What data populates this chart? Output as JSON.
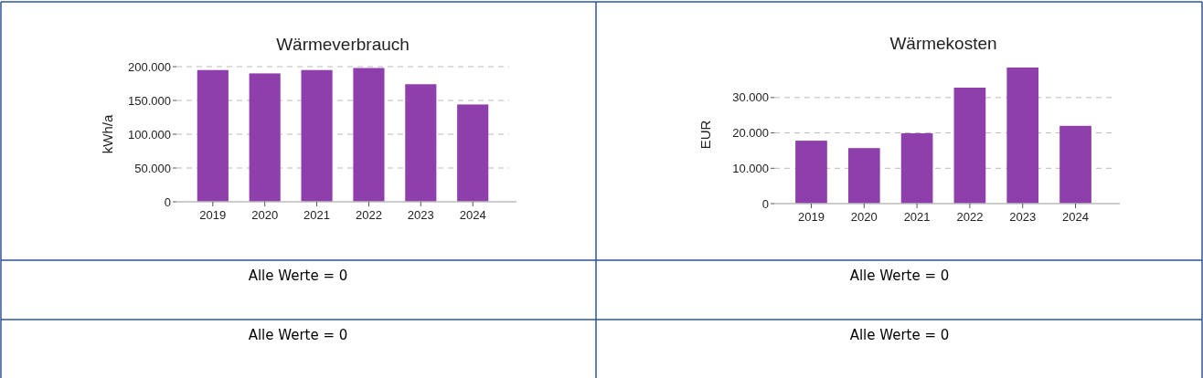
{
  "chart_data": [
    {
      "type": "bar",
      "title": "Wärmeverbrauch",
      "ylabel": "kWh/a",
      "categories": [
        "2019",
        "2020",
        "2021",
        "2022",
        "2023",
        "2024"
      ],
      "values": [
        195000,
        190000,
        195000,
        198000,
        174000,
        144000
      ],
      "color": "#8e3fab",
      "ylim": [
        0,
        200000
      ],
      "yticks": [
        {
          "value": 0,
          "label": "0"
        },
        {
          "value": 50000,
          "label": "50.000"
        },
        {
          "value": 100000,
          "label": "100.000"
        },
        {
          "value": 150000,
          "label": "150.000"
        },
        {
          "value": 200000,
          "label": "200.000"
        }
      ],
      "grid": "y"
    },
    {
      "type": "bar",
      "title": "Wärmekosten",
      "ylabel": "EUR",
      "categories": [
        "2019",
        "2020",
        "2021",
        "2022",
        "2023",
        "2024"
      ],
      "values": [
        17800,
        15700,
        19900,
        32800,
        38500,
        22000
      ],
      "color": "#8e3fab",
      "ylim": [
        0,
        39000
      ],
      "yticks": [
        {
          "value": 0,
          "label": "0"
        },
        {
          "value": 10000,
          "label": "10.000"
        },
        {
          "value": 20000,
          "label": "20.000"
        },
        {
          "value": 30000,
          "label": "30.000"
        }
      ],
      "grid": "y"
    },
    {
      "type": "other",
      "annotations": [
        "Alle Werte = 0"
      ]
    },
    {
      "type": "other",
      "annotations": [
        "Alle Werte = 0"
      ]
    },
    {
      "type": "other",
      "annotations": [
        "Alle Werte = 0"
      ]
    },
    {
      "type": "other",
      "annotations": [
        "Alle Werte = 0"
      ]
    }
  ]
}
